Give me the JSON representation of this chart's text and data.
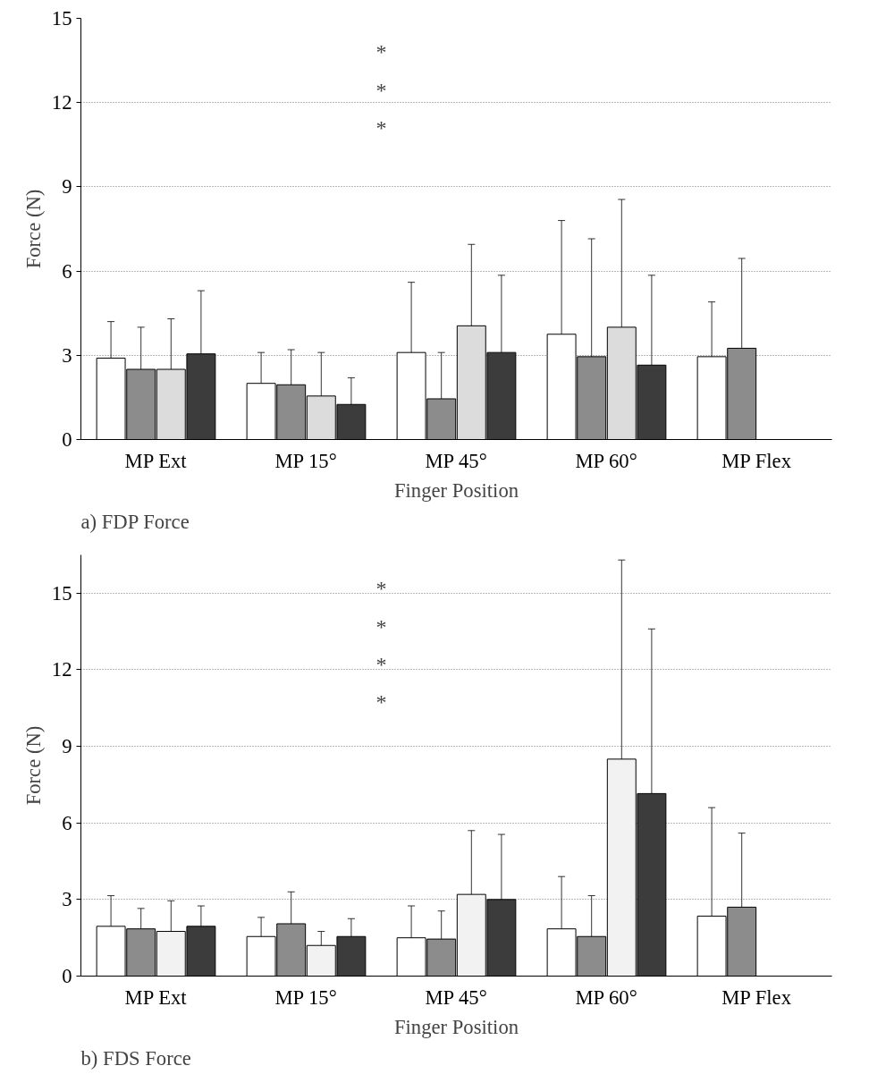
{
  "chart_data": [
    {
      "type": "bar",
      "title": "a) FDP Force",
      "xlabel": "Finger Position",
      "ylabel": "Force (N)",
      "categories": [
        "MP Ext",
        "MP 15°",
        "MP 45°",
        "MP 60°",
        "MP Flex"
      ],
      "series": [
        {
          "color": "#ffffff",
          "values": [
            2.9,
            2.0,
            3.1,
            3.75,
            2.95
          ],
          "errors": [
            [
              2.9,
              4.2
            ],
            [
              2.0,
              3.1
            ],
            [
              3.1,
              5.6
            ],
            [
              3.75,
              7.8
            ],
            [
              2.95,
              4.9
            ]
          ]
        },
        {
          "color": "#8c8c8c",
          "values": [
            2.5,
            1.95,
            1.45,
            2.95,
            3.25
          ],
          "errors": [
            [
              2.5,
              4.0
            ],
            [
              1.95,
              3.2
            ],
            [
              1.45,
              3.1
            ],
            [
              2.95,
              7.15
            ],
            [
              3.25,
              6.45
            ]
          ]
        },
        {
          "color": "#dcdcdc",
          "values": [
            2.5,
            1.55,
            4.05,
            4.0,
            null
          ],
          "errors": [
            [
              2.5,
              4.3
            ],
            [
              1.55,
              3.1
            ],
            [
              4.05,
              6.95
            ],
            [
              4.0,
              8.55
            ],
            null
          ]
        },
        {
          "color": "#3c3c3c",
          "values": [
            3.05,
            1.25,
            3.1,
            2.65,
            null
          ],
          "errors": [
            [
              3.05,
              5.3
            ],
            [
              1.25,
              2.2
            ],
            [
              3.1,
              5.85
            ],
            [
              2.65,
              5.85
            ],
            null
          ]
        }
      ],
      "annotations": [
        "*",
        "*",
        "*"
      ],
      "ylim": [
        0,
        15
      ],
      "yticks": [
        0,
        3,
        6,
        9,
        12,
        15
      ],
      "grid": "y"
    },
    {
      "type": "bar",
      "title": "b) FDS Force",
      "xlabel": "Finger Position",
      "ylabel": "Force (N)",
      "categories": [
        "MP Ext",
        "MP 15°",
        "MP 45°",
        "MP 60°",
        "MP Flex"
      ],
      "series": [
        {
          "color": "#ffffff",
          "values": [
            1.95,
            1.55,
            1.5,
            1.85,
            2.35
          ],
          "errors": [
            [
              1.95,
              3.15
            ],
            [
              1.55,
              2.3
            ],
            [
              1.5,
              2.75
            ],
            [
              1.85,
              3.9
            ],
            [
              2.35,
              6.6
            ]
          ]
        },
        {
          "color": "#8c8c8c",
          "values": [
            1.85,
            2.05,
            1.45,
            1.55,
            2.7
          ],
          "errors": [
            [
              1.85,
              2.65
            ],
            [
              2.05,
              3.3
            ],
            [
              1.45,
              2.55
            ],
            [
              1.55,
              3.15
            ],
            [
              2.7,
              5.6
            ]
          ]
        },
        {
          "color": "#f2f2f2",
          "values": [
            1.75,
            1.2,
            3.2,
            8.5,
            null
          ],
          "errors": [
            [
              1.75,
              2.95
            ],
            [
              1.2,
              1.75
            ],
            [
              3.2,
              5.7
            ],
            [
              8.5,
              16.3
            ],
            null
          ]
        },
        {
          "color": "#3c3c3c",
          "values": [
            1.95,
            1.55,
            3.0,
            7.15,
            null
          ],
          "errors": [
            [
              1.95,
              2.75
            ],
            [
              1.55,
              2.25
            ],
            [
              3.0,
              5.55
            ],
            [
              7.15,
              13.6
            ],
            null
          ]
        }
      ],
      "annotations": [
        "*",
        "*",
        "*",
        "*"
      ],
      "ylim": [
        0,
        16.5
      ],
      "yticks": [
        0,
        3,
        6,
        9,
        12,
        15
      ],
      "grid": "y"
    }
  ]
}
